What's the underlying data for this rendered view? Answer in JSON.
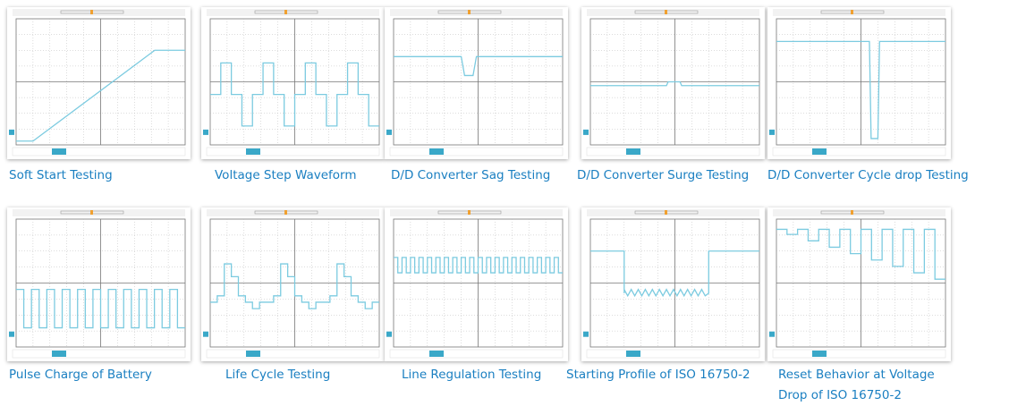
{
  "panels": [
    {
      "caption": "Soft Start Testing"
    },
    {
      "caption": "Voltage Step Waveform"
    },
    {
      "caption": "D/D Converter Sag Testing"
    },
    {
      "caption": "D/D Converter Surge Testing"
    },
    {
      "caption": "D/D Converter Cycle drop Testing"
    },
    {
      "caption": "Pulse Charge of Battery"
    },
    {
      "caption": "Life Cycle Testing"
    },
    {
      "caption": "Line Regulation Testing"
    },
    {
      "caption": "Starting Profile of ISO 16750-2"
    },
    {
      "caption": "Reset Behavior at Voltage Drop of ISO 16750-2"
    }
  ]
}
